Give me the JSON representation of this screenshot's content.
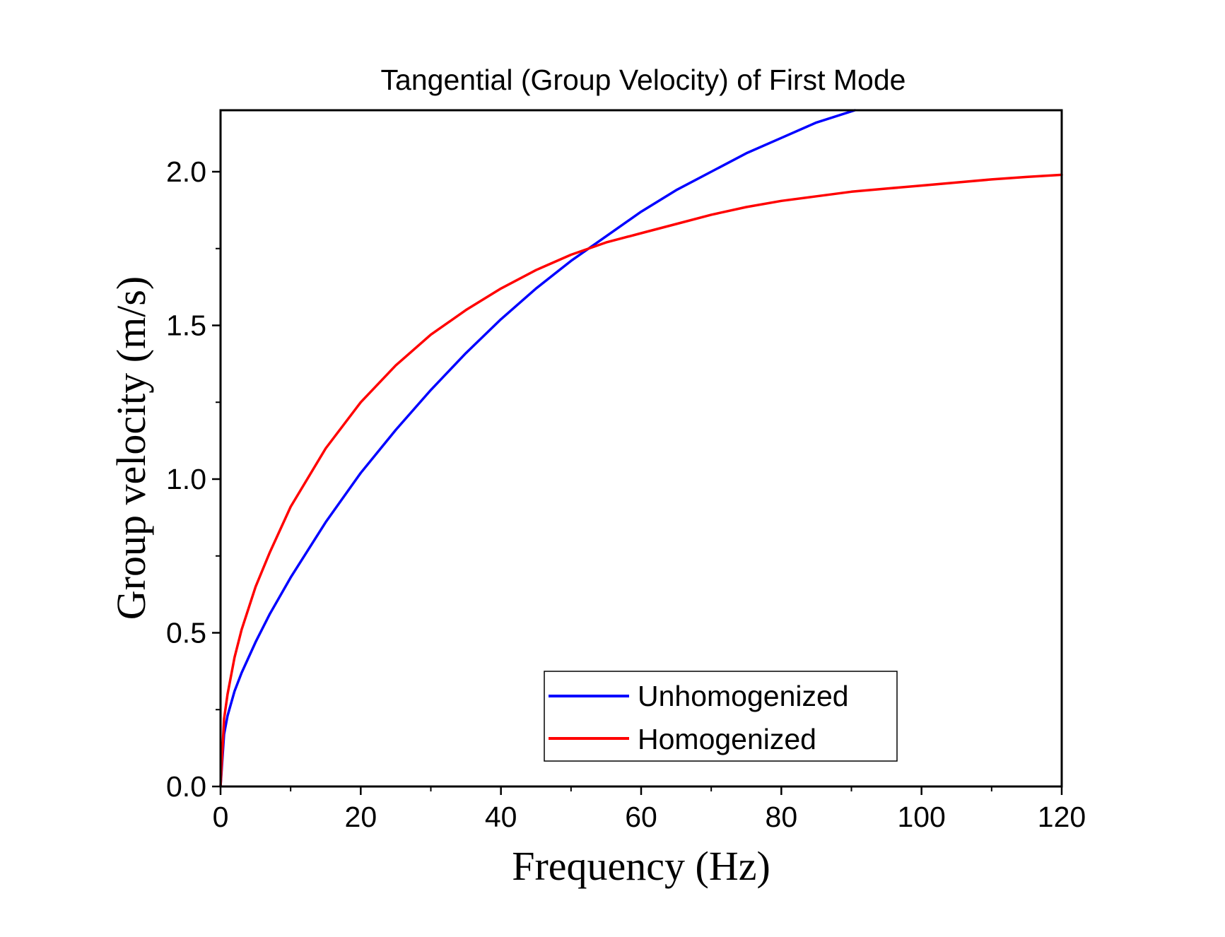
{
  "chart_data": {
    "type": "line",
    "title": "Tangential (Group Velocity) of First Mode",
    "xlabel": "Frequency (Hz)",
    "ylabel": "Group velocity (m/s)",
    "xlim": [
      0,
      120
    ],
    "ylim": [
      0,
      2.2
    ],
    "xticks": [
      0,
      20,
      40,
      60,
      80,
      100,
      120
    ],
    "xtick_labels": [
      "0",
      "20",
      "40",
      "60",
      "80",
      "100",
      "120"
    ],
    "yticks": [
      0,
      0.5,
      1.0,
      1.5,
      2.0
    ],
    "ytick_labels": [
      "0.0",
      "0.5",
      "1.0",
      "1.5",
      "2.0"
    ],
    "legend_position": "bottom-center",
    "grid": false,
    "series": [
      {
        "name": "Unhomogenized",
        "color": "#0000ff",
        "x": [
          0,
          0.5,
          1,
          2,
          3,
          5,
          7,
          10,
          15,
          20,
          25,
          30,
          35,
          40,
          45,
          50,
          55,
          60,
          65,
          70,
          75,
          80,
          85,
          90.5
        ],
        "y": [
          0,
          0.17,
          0.23,
          0.31,
          0.37,
          0.47,
          0.56,
          0.68,
          0.86,
          1.02,
          1.16,
          1.29,
          1.41,
          1.52,
          1.62,
          1.71,
          1.79,
          1.87,
          1.94,
          2.0,
          2.06,
          2.11,
          2.16,
          2.2
        ]
      },
      {
        "name": "Homogenized",
        "color": "#ff0000",
        "x": [
          0,
          0.5,
          1,
          2,
          3,
          5,
          7,
          10,
          15,
          20,
          25,
          30,
          35,
          40,
          45,
          50,
          55,
          60,
          65,
          70,
          75,
          80,
          85,
          90,
          95,
          100,
          105,
          110,
          115,
          120
        ],
        "y": [
          0,
          0.22,
          0.3,
          0.42,
          0.51,
          0.65,
          0.76,
          0.91,
          1.1,
          1.25,
          1.37,
          1.47,
          1.55,
          1.62,
          1.68,
          1.73,
          1.77,
          1.8,
          1.83,
          1.86,
          1.885,
          1.905,
          1.92,
          1.935,
          1.945,
          1.955,
          1.965,
          1.975,
          1.983,
          1.99
        ]
      }
    ]
  }
}
